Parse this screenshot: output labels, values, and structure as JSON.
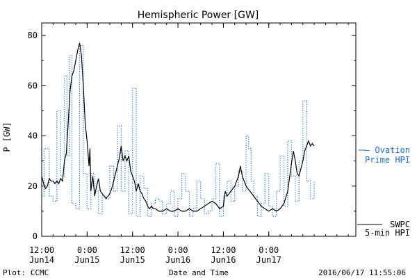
{
  "chart_data": {
    "type": "line",
    "title": "Hemispheric Power [GW]",
    "ylabel": "P [GW]",
    "xlabel": "Date and Time",
    "ylim": [
      0,
      85
    ],
    "xlim": [
      "2016-06-14 12:00",
      "2016-06-17 23:00"
    ],
    "yticks": [
      0,
      20,
      40,
      60,
      80
    ],
    "xticks": [
      {
        "at": "2016-06-14 12:00",
        "time": "12:00",
        "date": "Jun14"
      },
      {
        "at": "2016-06-15 00:00",
        "time": "0:00",
        "date": "Jun15"
      },
      {
        "at": "2016-06-15 12:00",
        "time": "12:00",
        "date": "Jun15"
      },
      {
        "at": "2016-06-16 00:00",
        "time": "0:00",
        "date": "Jun16"
      },
      {
        "at": "2016-06-16 12:00",
        "time": "12:00",
        "date": "Jun16"
      },
      {
        "at": "2016-06-17 00:00",
        "time": "0:00",
        "date": "Jun17"
      }
    ],
    "grid": false,
    "legend_placement": "right",
    "series": [
      {
        "name": "Ovation Prime HPI",
        "legend_line1": "— Ovation",
        "legend_line2": "Prime HPI",
        "style": "dotted",
        "color": "#1a6fd6",
        "points": [
          [
            "2016-06-14 12:00",
            16
          ],
          [
            "2016-06-14 12:40",
            35
          ],
          [
            "2016-06-14 14:00",
            16
          ],
          [
            "2016-06-14 15:00",
            14
          ],
          [
            "2016-06-14 16:00",
            50
          ],
          [
            "2016-06-14 17:00",
            24
          ],
          [
            "2016-06-14 18:00",
            64
          ],
          [
            "2016-06-14 18:40",
            32
          ],
          [
            "2016-06-14 19:20",
            72
          ],
          [
            "2016-06-14 20:00",
            13
          ],
          [
            "2016-06-14 21:00",
            11
          ],
          [
            "2016-06-14 22:00",
            76
          ],
          [
            "2016-06-14 23:00",
            25
          ],
          [
            "2016-06-15 00:00",
            11
          ],
          [
            "2016-06-15 01:00",
            25
          ],
          [
            "2016-06-15 02:00",
            18
          ],
          [
            "2016-06-15 03:00",
            9
          ],
          [
            "2016-06-15 04:00",
            16
          ],
          [
            "2016-06-15 05:00",
            15
          ],
          [
            "2016-06-15 06:00",
            28
          ],
          [
            "2016-06-15 07:00",
            18
          ],
          [
            "2016-06-15 08:00",
            44
          ],
          [
            "2016-06-15 09:00",
            18
          ],
          [
            "2016-06-15 10:00",
            34
          ],
          [
            "2016-06-15 11:00",
            9
          ],
          [
            "2016-06-15 12:00",
            59
          ],
          [
            "2016-06-15 13:00",
            8
          ],
          [
            "2016-06-15 14:00",
            24
          ],
          [
            "2016-06-15 15:00",
            19
          ],
          [
            "2016-06-15 16:00",
            8
          ],
          [
            "2016-06-15 17:00",
            13
          ],
          [
            "2016-06-15 18:00",
            15
          ],
          [
            "2016-06-15 19:00",
            14
          ],
          [
            "2016-06-15 20:00",
            9
          ],
          [
            "2016-06-15 21:00",
            13
          ],
          [
            "2016-06-15 22:00",
            18
          ],
          [
            "2016-06-15 23:00",
            8
          ],
          [
            "2016-06-16 00:00",
            15
          ],
          [
            "2016-06-16 01:00",
            25
          ],
          [
            "2016-06-16 02:00",
            18
          ],
          [
            "2016-06-16 03:00",
            8
          ],
          [
            "2016-06-16 04:00",
            11
          ],
          [
            "2016-06-16 05:00",
            22
          ],
          [
            "2016-06-16 06:00",
            15
          ],
          [
            "2016-06-16 07:00",
            9
          ],
          [
            "2016-06-16 08:00",
            10
          ],
          [
            "2016-06-16 09:00",
            15
          ],
          [
            "2016-06-16 10:00",
            29
          ],
          [
            "2016-06-16 11:00",
            8
          ],
          [
            "2016-06-16 12:00",
            16
          ],
          [
            "2016-06-16 13:00",
            22
          ],
          [
            "2016-06-16 14:00",
            14
          ],
          [
            "2016-06-16 15:00",
            20
          ],
          [
            "2016-06-16 16:00",
            26
          ],
          [
            "2016-06-16 17:00",
            18
          ],
          [
            "2016-06-16 18:00",
            40
          ],
          [
            "2016-06-16 18:40",
            35
          ],
          [
            "2016-06-16 19:20",
            22
          ],
          [
            "2016-06-16 20:00",
            16
          ],
          [
            "2016-06-16 21:00",
            8
          ],
          [
            "2016-06-16 22:00",
            13
          ],
          [
            "2016-06-16 23:00",
            25
          ],
          [
            "2016-06-17 00:00",
            12
          ],
          [
            "2016-06-17 01:00",
            8
          ],
          [
            "2016-06-17 02:00",
            18
          ],
          [
            "2016-06-17 03:00",
            32
          ],
          [
            "2016-06-17 04:00",
            12
          ],
          [
            "2016-06-17 05:00",
            38
          ],
          [
            "2016-06-17 06:00",
            24
          ],
          [
            "2016-06-17 07:00",
            14
          ],
          [
            "2016-06-17 08:00",
            30
          ],
          [
            "2016-06-17 09:00",
            54
          ],
          [
            "2016-06-17 10:00",
            22
          ],
          [
            "2016-06-17 11:00",
            15
          ],
          [
            "2016-06-17 12:00",
            22
          ]
        ]
      },
      {
        "name": "SWPC 5-min HPI",
        "legend_line1": "SWPC",
        "legend_line2": "5-min HPI",
        "style": "solid",
        "color": "#000000",
        "points": [
          [
            "2016-06-14 12:00",
            24
          ],
          [
            "2016-06-14 12:30",
            21
          ],
          [
            "2016-06-14 13:00",
            19
          ],
          [
            "2016-06-14 13:30",
            20
          ],
          [
            "2016-06-14 14:00",
            23
          ],
          [
            "2016-06-14 14:30",
            22
          ],
          [
            "2016-06-14 15:00",
            22
          ],
          [
            "2016-06-14 15:30",
            21
          ],
          [
            "2016-06-14 16:00",
            22
          ],
          [
            "2016-06-14 16:30",
            21
          ],
          [
            "2016-06-14 17:00",
            23
          ],
          [
            "2016-06-14 17:30",
            22
          ],
          [
            "2016-06-14 18:00",
            30
          ],
          [
            "2016-06-14 18:30",
            33
          ],
          [
            "2016-06-14 19:00",
            45
          ],
          [
            "2016-06-14 19:30",
            58
          ],
          [
            "2016-06-14 20:00",
            64
          ],
          [
            "2016-06-14 20:30",
            66
          ],
          [
            "2016-06-14 21:00",
            70
          ],
          [
            "2016-06-14 21:30",
            74
          ],
          [
            "2016-06-14 22:00",
            77
          ],
          [
            "2016-06-14 22:30",
            72
          ],
          [
            "2016-06-14 23:00",
            60
          ],
          [
            "2016-06-14 23:30",
            45
          ],
          [
            "2016-06-15 00:00",
            38
          ],
          [
            "2016-06-15 00:30",
            28
          ],
          [
            "2016-06-15 00:45",
            35
          ],
          [
            "2016-06-15 01:00",
            18
          ],
          [
            "2016-06-15 01:30",
            24
          ],
          [
            "2016-06-15 02:00",
            16
          ],
          [
            "2016-06-15 02:30",
            20
          ],
          [
            "2016-06-15 03:00",
            23
          ],
          [
            "2016-06-15 03:30",
            18
          ],
          [
            "2016-06-15 04:00",
            17
          ],
          [
            "2016-06-15 04:30",
            16
          ],
          [
            "2016-06-15 05:00",
            15
          ],
          [
            "2016-06-15 05:30",
            16
          ],
          [
            "2016-06-15 06:00",
            17
          ],
          [
            "2016-06-15 06:30",
            19
          ],
          [
            "2016-06-15 07:00",
            22
          ],
          [
            "2016-06-15 07:30",
            25
          ],
          [
            "2016-06-15 08:00",
            28
          ],
          [
            "2016-06-15 08:30",
            31
          ],
          [
            "2016-06-15 09:00",
            36
          ],
          [
            "2016-06-15 09:30",
            30
          ],
          [
            "2016-06-15 10:00",
            32
          ],
          [
            "2016-06-15 10:30",
            30
          ],
          [
            "2016-06-15 11:00",
            32
          ],
          [
            "2016-06-15 11:30",
            26
          ],
          [
            "2016-06-15 12:00",
            24
          ],
          [
            "2016-06-15 12:30",
            22
          ],
          [
            "2016-06-15 13:00",
            18
          ],
          [
            "2016-06-15 13:30",
            21
          ],
          [
            "2016-06-15 14:00",
            18
          ],
          [
            "2016-06-15 14:30",
            17
          ],
          [
            "2016-06-15 15:00",
            15
          ],
          [
            "2016-06-15 15:30",
            14
          ],
          [
            "2016-06-15 16:00",
            12
          ],
          [
            "2016-06-15 16:30",
            11
          ],
          [
            "2016-06-15 17:00",
            12
          ],
          [
            "2016-06-15 17:30",
            11
          ],
          [
            "2016-06-15 18:00",
            11
          ],
          [
            "2016-06-15 19:00",
            10
          ],
          [
            "2016-06-15 20:00",
            10
          ],
          [
            "2016-06-15 21:00",
            11
          ],
          [
            "2016-06-15 22:00",
            10
          ],
          [
            "2016-06-15 23:00",
            10
          ],
          [
            "2016-06-16 00:00",
            11
          ],
          [
            "2016-06-16 01:00",
            10
          ],
          [
            "2016-06-16 02:00",
            10
          ],
          [
            "2016-06-16 03:00",
            11
          ],
          [
            "2016-06-16 04:00",
            10
          ],
          [
            "2016-06-16 05:00",
            10
          ],
          [
            "2016-06-16 06:00",
            11
          ],
          [
            "2016-06-16 07:00",
            12
          ],
          [
            "2016-06-16 08:00",
            13
          ],
          [
            "2016-06-16 09:00",
            14
          ],
          [
            "2016-06-16 10:00",
            13
          ],
          [
            "2016-06-16 11:00",
            11
          ],
          [
            "2016-06-16 12:00",
            12
          ],
          [
            "2016-06-16 12:30",
            18
          ],
          [
            "2016-06-16 13:00",
            16
          ],
          [
            "2016-06-16 14:00",
            18
          ],
          [
            "2016-06-16 15:00",
            20
          ],
          [
            "2016-06-16 16:00",
            24
          ],
          [
            "2016-06-16 16:30",
            28
          ],
          [
            "2016-06-16 17:00",
            24
          ],
          [
            "2016-06-16 18:00",
            20
          ],
          [
            "2016-06-16 19:00",
            18
          ],
          [
            "2016-06-16 20:00",
            16
          ],
          [
            "2016-06-16 21:00",
            14
          ],
          [
            "2016-06-16 22:00",
            12
          ],
          [
            "2016-06-16 23:00",
            11
          ],
          [
            "2016-06-17 00:00",
            10
          ],
          [
            "2016-06-17 01:00",
            11
          ],
          [
            "2016-06-17 02:00",
            10
          ],
          [
            "2016-06-17 03:00",
            11
          ],
          [
            "2016-06-17 04:00",
            13
          ],
          [
            "2016-06-17 05:00",
            18
          ],
          [
            "2016-06-17 06:00",
            29
          ],
          [
            "2016-06-17 06:30",
            34
          ],
          [
            "2016-06-17 07:00",
            30
          ],
          [
            "2016-06-17 07:30",
            25
          ],
          [
            "2016-06-17 08:00",
            24
          ],
          [
            "2016-06-17 09:00",
            30
          ],
          [
            "2016-06-17 09:30",
            34
          ],
          [
            "2016-06-17 10:00",
            36
          ],
          [
            "2016-06-17 10:30",
            38
          ],
          [
            "2016-06-17 11:00",
            36
          ],
          [
            "2016-06-17 11:30",
            37
          ],
          [
            "2016-06-17 12:00",
            36
          ]
        ]
      }
    ]
  },
  "footer": {
    "left": "Plot: CCMC",
    "right": "2016/06/17 11:55:06"
  }
}
